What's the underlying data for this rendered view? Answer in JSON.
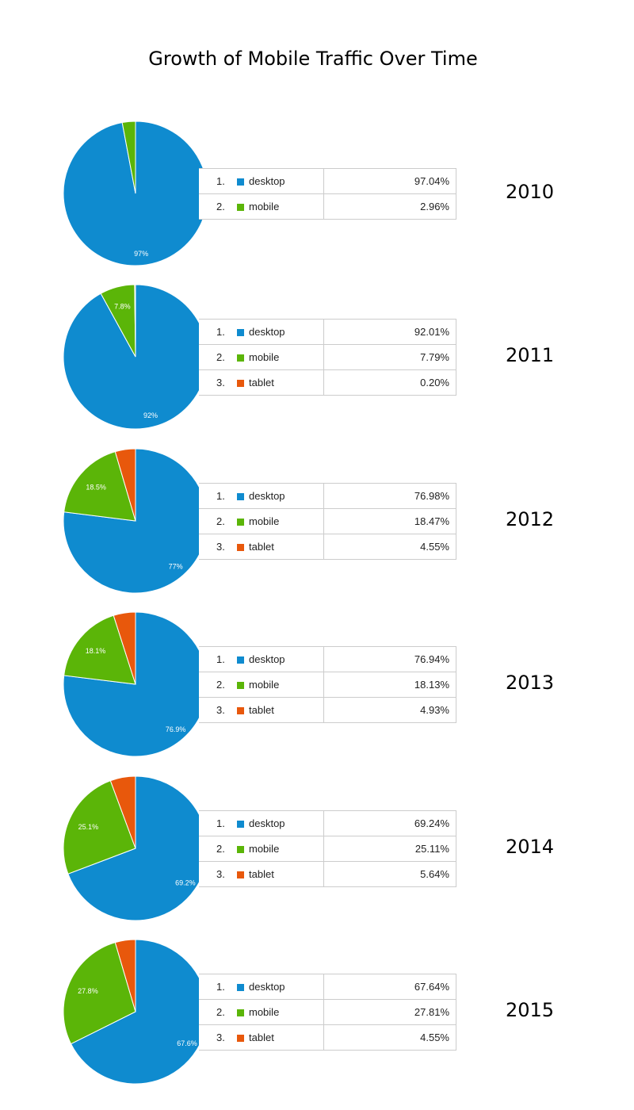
{
  "title": "Growth of Mobile Traffic Over Time",
  "colors": {
    "desktop": "#0F8BCF",
    "mobile": "#5BB508",
    "tablet": "#E8580C"
  },
  "chart_data": [
    {
      "type": "pie",
      "year": "2010",
      "slices": [
        {
          "rank": "1.",
          "label": "desktop",
          "value": 97.04,
          "display": "97.04%",
          "slice_label": "97%"
        },
        {
          "rank": "2.",
          "label": "mobile",
          "value": 2.96,
          "display": "2.96%",
          "slice_label": ""
        }
      ]
    },
    {
      "type": "pie",
      "year": "2011",
      "slices": [
        {
          "rank": "1.",
          "label": "desktop",
          "value": 92.01,
          "display": "92.01%",
          "slice_label": "92%"
        },
        {
          "rank": "2.",
          "label": "mobile",
          "value": 7.79,
          "display": "7.79%",
          "slice_label": "7.8%"
        },
        {
          "rank": "3.",
          "label": "tablet",
          "value": 0.2,
          "display": "0.20%",
          "slice_label": ""
        }
      ]
    },
    {
      "type": "pie",
      "year": "2012",
      "slices": [
        {
          "rank": "1.",
          "label": "desktop",
          "value": 76.98,
          "display": "76.98%",
          "slice_label": "77%"
        },
        {
          "rank": "2.",
          "label": "mobile",
          "value": 18.47,
          "display": "18.47%",
          "slice_label": "18.5%"
        },
        {
          "rank": "3.",
          "label": "tablet",
          "value": 4.55,
          "display": "4.55%",
          "slice_label": ""
        }
      ]
    },
    {
      "type": "pie",
      "year": "2013",
      "slices": [
        {
          "rank": "1.",
          "label": "desktop",
          "value": 76.94,
          "display": "76.94%",
          "slice_label": "76.9%"
        },
        {
          "rank": "2.",
          "label": "mobile",
          "value": 18.13,
          "display": "18.13%",
          "slice_label": "18.1%"
        },
        {
          "rank": "3.",
          "label": "tablet",
          "value": 4.93,
          "display": "4.93%",
          "slice_label": ""
        }
      ]
    },
    {
      "type": "pie",
      "year": "2014",
      "slices": [
        {
          "rank": "1.",
          "label": "desktop",
          "value": 69.24,
          "display": "69.24%",
          "slice_label": "69.2%"
        },
        {
          "rank": "2.",
          "label": "mobile",
          "value": 25.11,
          "display": "25.11%",
          "slice_label": "25.1%"
        },
        {
          "rank": "3.",
          "label": "tablet",
          "value": 5.64,
          "display": "5.64%",
          "slice_label": ""
        }
      ]
    },
    {
      "type": "pie",
      "year": "2015",
      "slices": [
        {
          "rank": "1.",
          "label": "desktop",
          "value": 67.64,
          "display": "67.64%",
          "slice_label": "67.6%"
        },
        {
          "rank": "2.",
          "label": "mobile",
          "value": 27.81,
          "display": "27.81%",
          "slice_label": "27.8%"
        },
        {
          "rank": "3.",
          "label": "tablet",
          "value": 4.55,
          "display": "4.55%",
          "slice_label": ""
        }
      ]
    }
  ]
}
